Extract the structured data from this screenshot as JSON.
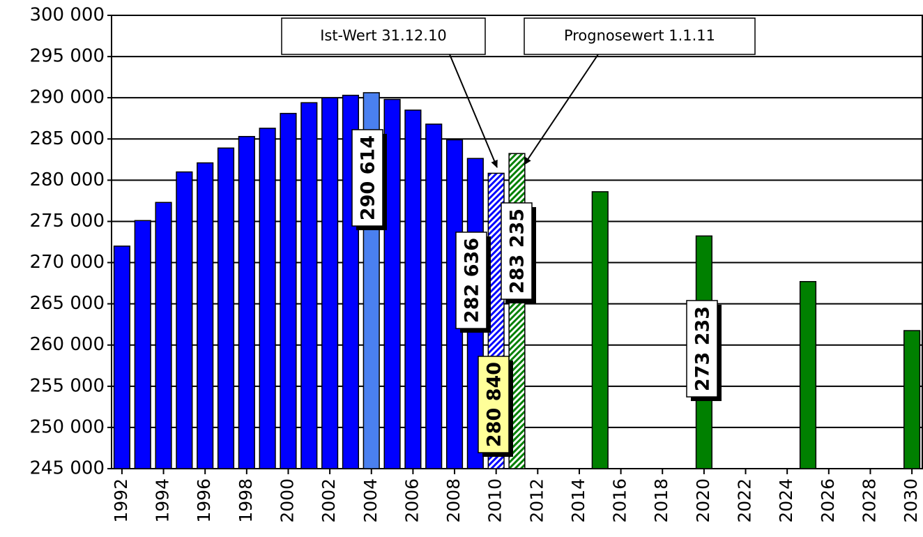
{
  "chart_data": {
    "type": "bar",
    "x": [
      1992,
      1993,
      1994,
      1995,
      1996,
      1997,
      1998,
      1999,
      2000,
      2001,
      2002,
      2003,
      2004,
      2005,
      2006,
      2007,
      2008,
      2009,
      2010,
      2011,
      2015,
      2020,
      2025,
      2030
    ],
    "values": [
      272000,
      275100,
      277300,
      281000,
      282100,
      283900,
      285300,
      286300,
      288100,
      289400,
      290000,
      290300,
      290614,
      289800,
      288500,
      286800,
      284900,
      282636,
      280840,
      283235,
      278600,
      273233,
      267700,
      261750
    ],
    "value_labels": [
      null,
      null,
      null,
      null,
      null,
      null,
      null,
      null,
      null,
      null,
      null,
      null,
      "290 614",
      null,
      null,
      null,
      null,
      "282 636",
      "280 840",
      "283 235",
      null,
      "273 233",
      null,
      null
    ],
    "value_label_colors": [
      null,
      null,
      null,
      null,
      null,
      null,
      null,
      null,
      null,
      null,
      null,
      null,
      "#ffffff",
      null,
      null,
      null,
      null,
      "#ffffff",
      "#ffff99",
      "#ffffff",
      null,
      "#ffffff",
      null,
      null
    ],
    "colors": [
      "#0000ff",
      "#0000ff",
      "#0000ff",
      "#0000ff",
      "#0000ff",
      "#0000ff",
      "#0000ff",
      "#0000ff",
      "#0000ff",
      "#0000ff",
      "#0000ff",
      "#0000ff",
      "#4a80f0",
      "#0000ff",
      "#0000ff",
      "#0000ff",
      "#0000ff",
      "#0000ff",
      "#0000ff",
      "#008000",
      "#008000",
      "#008000",
      "#008000",
      "#008000"
    ],
    "hatched": [
      false,
      false,
      false,
      false,
      false,
      false,
      false,
      false,
      false,
      false,
      false,
      false,
      false,
      false,
      false,
      false,
      false,
      false,
      true,
      true,
      false,
      false,
      false,
      false
    ],
    "annotations": [
      "Ist-Wert 31.12.10",
      "Prognosewert 1.1.11"
    ],
    "xlim": [
      1991.5,
      2030.5
    ],
    "xticks": [
      1992,
      1994,
      1996,
      1998,
      2000,
      2002,
      2004,
      2006,
      2008,
      2010,
      2012,
      2014,
      2016,
      2018,
      2020,
      2022,
      2024,
      2026,
      2028,
      2030
    ],
    "ylim": [
      245000,
      300000
    ],
    "yticks": [
      {
        "value": 245000,
        "label": "245 000"
      },
      {
        "value": 250000,
        "label": "250 000"
      },
      {
        "value": 255000,
        "label": "255 000"
      },
      {
        "value": 260000,
        "label": "260 000"
      },
      {
        "value": 265000,
        "label": "265 000"
      },
      {
        "value": 270000,
        "label": "270 000"
      },
      {
        "value": 275000,
        "label": "275 000"
      },
      {
        "value": 280000,
        "label": "280 000"
      },
      {
        "value": 285000,
        "label": "285 000"
      },
      {
        "value": 290000,
        "label": "290 000"
      },
      {
        "value": 295000,
        "label": "295 000"
      },
      {
        "value": 300000,
        "label": "300 000"
      }
    ],
    "grid": true
  }
}
